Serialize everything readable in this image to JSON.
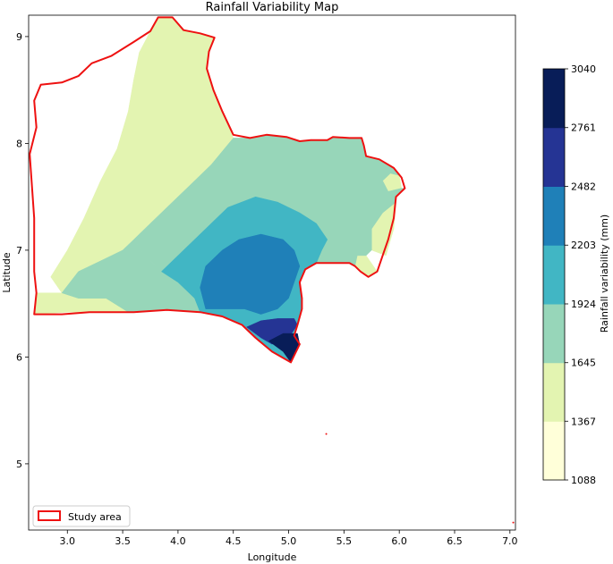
{
  "chart_data": {
    "type": "heatmap",
    "title": "Rainfall Variability Map",
    "xlabel": "Longitude",
    "ylabel": "Latitude",
    "xlim": [
      2.65,
      7.05
    ],
    "ylim": [
      4.38,
      9.2
    ],
    "xticks": [
      3.0,
      3.5,
      4.0,
      4.5,
      5.0,
      5.5,
      6.0,
      6.5,
      7.0
    ],
    "xtick_labels": [
      "3.0",
      "3.5",
      "4.0",
      "4.5",
      "5.0",
      "5.5",
      "6.0",
      "6.5",
      "7.0"
    ],
    "yticks": [
      5,
      6,
      7,
      8,
      9
    ],
    "ytick_labels": [
      "5",
      "6",
      "7",
      "8",
      "9"
    ],
    "grid": false,
    "colorbar": {
      "label": "Rainfall variability (mm)",
      "bounds": [
        1088,
        1367,
        1645,
        1924,
        2203,
        2482,
        2761,
        3040
      ],
      "tick_labels": [
        "1088",
        "1367",
        "1645",
        "1924",
        "2203",
        "2482",
        "2761",
        "3040"
      ],
      "colors": [
        "#ffffd9",
        "#e3f4b1",
        "#97d6b9",
        "#41b6c4",
        "#1f80b8",
        "#253494",
        "#081d58"
      ]
    },
    "legend": {
      "entries": [
        "Study area"
      ],
      "placement": "lower-left",
      "boundary_color": "#ee1111"
    },
    "study_area_outline": [
      [
        2.7,
        6.4
      ],
      [
        2.72,
        6.6
      ],
      [
        2.7,
        6.8
      ],
      [
        2.7,
        7.0
      ],
      [
        2.7,
        7.3
      ],
      [
        2.68,
        7.6
      ],
      [
        2.66,
        7.9
      ],
      [
        2.72,
        8.15
      ],
      [
        2.7,
        8.4
      ],
      [
        2.76,
        8.55
      ],
      [
        2.95,
        8.57
      ],
      [
        3.1,
        8.63
      ],
      [
        3.22,
        8.75
      ],
      [
        3.4,
        8.82
      ],
      [
        3.6,
        8.95
      ],
      [
        3.75,
        9.05
      ],
      [
        3.82,
        9.18
      ],
      [
        3.95,
        9.18
      ],
      [
        4.05,
        9.06
      ],
      [
        4.2,
        9.03
      ],
      [
        4.33,
        8.99
      ],
      [
        4.28,
        8.86
      ],
      [
        4.26,
        8.7
      ],
      [
        4.32,
        8.5
      ],
      [
        4.4,
        8.3
      ],
      [
        4.5,
        8.08
      ],
      [
        4.65,
        8.05
      ],
      [
        4.8,
        8.08
      ],
      [
        4.98,
        8.06
      ],
      [
        5.1,
        8.02
      ],
      [
        5.2,
        8.03
      ],
      [
        5.35,
        8.03
      ],
      [
        5.4,
        8.06
      ],
      [
        5.55,
        8.05
      ],
      [
        5.66,
        8.05
      ],
      [
        5.68,
        7.98
      ],
      [
        5.7,
        7.88
      ],
      [
        5.82,
        7.85
      ],
      [
        5.95,
        7.77
      ],
      [
        6.02,
        7.68
      ],
      [
        6.05,
        7.58
      ],
      [
        5.97,
        7.5
      ],
      [
        5.95,
        7.3
      ],
      [
        5.9,
        7.1
      ],
      [
        5.85,
        6.95
      ],
      [
        5.8,
        6.8
      ],
      [
        5.72,
        6.75
      ],
      [
        5.65,
        6.8
      ],
      [
        5.6,
        6.85
      ],
      [
        5.55,
        6.88
      ],
      [
        5.4,
        6.88
      ],
      [
        5.25,
        6.88
      ],
      [
        5.15,
        6.82
      ],
      [
        5.1,
        6.7
      ],
      [
        5.12,
        6.55
      ],
      [
        5.12,
        6.45
      ],
      [
        5.08,
        6.3
      ],
      [
        5.05,
        6.2
      ],
      [
        5.1,
        6.12
      ],
      [
        5.02,
        5.95
      ],
      [
        4.85,
        6.05
      ],
      [
        4.7,
        6.18
      ],
      [
        4.58,
        6.3
      ],
      [
        4.4,
        6.38
      ],
      [
        4.2,
        6.42
      ],
      [
        3.9,
        6.44
      ],
      [
        3.6,
        6.42
      ],
      [
        3.2,
        6.42
      ],
      [
        2.95,
        6.4
      ],
      [
        2.7,
        6.4
      ]
    ],
    "class_regions": [
      {
        "class": 1,
        "outline": [
          [
            2.7,
            6.4
          ],
          [
            3.0,
            6.42
          ],
          [
            3.4,
            6.42
          ],
          [
            3.6,
            6.42
          ],
          [
            3.55,
            6.5
          ],
          [
            3.35,
            6.55
          ],
          [
            3.1,
            6.55
          ],
          [
            2.95,
            6.6
          ],
          [
            2.8,
            6.6
          ],
          [
            2.72,
            6.6
          ]
        ]
      },
      {
        "class": 1,
        "outline": [
          [
            2.95,
            6.6
          ],
          [
            3.1,
            6.8
          ],
          [
            3.3,
            6.9
          ],
          [
            3.5,
            7.0
          ],
          [
            3.7,
            7.2
          ],
          [
            3.9,
            7.4
          ],
          [
            4.1,
            7.6
          ],
          [
            4.3,
            7.8
          ],
          [
            4.5,
            8.05
          ],
          [
            4.4,
            8.3
          ],
          [
            4.32,
            8.5
          ],
          [
            4.26,
            8.7
          ],
          [
            4.28,
            8.86
          ],
          [
            4.33,
            8.99
          ],
          [
            4.2,
            9.03
          ],
          [
            4.05,
            9.06
          ],
          [
            3.95,
            9.18
          ],
          [
            3.82,
            9.18
          ],
          [
            3.75,
            9.05
          ],
          [
            3.65,
            8.85
          ],
          [
            3.6,
            8.6
          ],
          [
            3.55,
            8.3
          ],
          [
            3.45,
            7.95
          ],
          [
            3.3,
            7.65
          ],
          [
            3.15,
            7.3
          ],
          [
            3.0,
            7.0
          ],
          [
            2.85,
            6.75
          ]
        ]
      },
      {
        "class": 1,
        "outline": [
          [
            5.75,
            7.0
          ],
          [
            5.88,
            6.95
          ],
          [
            5.95,
            7.2
          ],
          [
            5.97,
            7.45
          ],
          [
            5.85,
            7.35
          ],
          [
            5.75,
            7.2
          ]
        ]
      },
      {
        "class": 1,
        "outline": [
          [
            5.6,
            6.85
          ],
          [
            5.72,
            6.75
          ],
          [
            5.8,
            6.8
          ],
          [
            5.7,
            6.95
          ],
          [
            5.62,
            6.95
          ]
        ]
      },
      {
        "class": 1,
        "outline": [
          [
            5.9,
            7.55
          ],
          [
            6.02,
            7.58
          ],
          [
            6.0,
            7.7
          ],
          [
            5.92,
            7.72
          ],
          [
            5.85,
            7.65
          ]
        ]
      },
      {
        "class": 2,
        "outline": [
          [
            3.55,
            6.42
          ],
          [
            3.9,
            6.44
          ],
          [
            4.2,
            6.42
          ],
          [
            4.15,
            6.55
          ],
          [
            4.0,
            6.7
          ],
          [
            3.85,
            6.8
          ],
          [
            3.7,
            6.95
          ],
          [
            3.6,
            7.1
          ],
          [
            3.5,
            7.0
          ],
          [
            3.3,
            6.9
          ],
          [
            3.1,
            6.8
          ],
          [
            2.95,
            6.6
          ],
          [
            3.1,
            6.55
          ],
          [
            3.35,
            6.55
          ]
        ]
      },
      {
        "class": 2,
        "outline": [
          [
            3.6,
            7.1
          ],
          [
            3.7,
            6.95
          ],
          [
            3.85,
            6.8
          ],
          [
            4.0,
            6.7
          ],
          [
            4.15,
            6.55
          ],
          [
            4.2,
            6.42
          ],
          [
            4.4,
            6.38
          ],
          [
            4.58,
            6.3
          ],
          [
            4.7,
            6.18
          ],
          [
            4.85,
            6.05
          ],
          [
            5.02,
            5.95
          ],
          [
            5.1,
            6.12
          ],
          [
            5.05,
            6.2
          ],
          [
            5.08,
            6.3
          ],
          [
            5.12,
            6.45
          ],
          [
            5.12,
            6.55
          ],
          [
            5.1,
            6.7
          ],
          [
            5.15,
            6.82
          ],
          [
            5.25,
            6.88
          ],
          [
            5.4,
            6.88
          ],
          [
            5.55,
            6.88
          ],
          [
            5.6,
            6.85
          ],
          [
            5.62,
            6.95
          ],
          [
            5.7,
            6.95
          ],
          [
            5.75,
            7.0
          ],
          [
            5.75,
            7.2
          ],
          [
            5.85,
            7.35
          ],
          [
            5.97,
            7.45
          ],
          [
            5.97,
            7.5
          ],
          [
            6.05,
            7.58
          ],
          [
            6.02,
            7.58
          ],
          [
            5.9,
            7.55
          ],
          [
            5.85,
            7.65
          ],
          [
            5.92,
            7.72
          ],
          [
            6.0,
            7.7
          ],
          [
            5.95,
            7.77
          ],
          [
            5.82,
            7.85
          ],
          [
            5.7,
            7.88
          ],
          [
            5.68,
            7.98
          ],
          [
            5.66,
            8.05
          ],
          [
            5.55,
            8.05
          ],
          [
            5.4,
            8.06
          ],
          [
            5.35,
            8.03
          ],
          [
            5.2,
            8.03
          ],
          [
            5.1,
            8.02
          ],
          [
            4.98,
            8.06
          ],
          [
            4.8,
            8.08
          ],
          [
            4.65,
            8.05
          ],
          [
            4.5,
            8.05
          ],
          [
            4.3,
            7.8
          ],
          [
            4.1,
            7.6
          ],
          [
            3.9,
            7.4
          ],
          [
            3.7,
            7.2
          ]
        ]
      },
      {
        "class": 3,
        "outline": [
          [
            3.85,
            6.8
          ],
          [
            4.0,
            6.7
          ],
          [
            4.15,
            6.55
          ],
          [
            4.2,
            6.42
          ],
          [
            4.4,
            6.38
          ],
          [
            4.58,
            6.3
          ],
          [
            4.7,
            6.18
          ],
          [
            4.85,
            6.05
          ],
          [
            5.02,
            5.95
          ],
          [
            5.1,
            6.12
          ],
          [
            5.05,
            6.2
          ],
          [
            5.08,
            6.3
          ],
          [
            5.12,
            6.45
          ],
          [
            5.12,
            6.55
          ],
          [
            5.1,
            6.7
          ],
          [
            5.15,
            6.82
          ],
          [
            5.25,
            6.88
          ],
          [
            5.3,
            7.0
          ],
          [
            5.35,
            7.1
          ],
          [
            5.25,
            7.25
          ],
          [
            5.1,
            7.35
          ],
          [
            4.9,
            7.45
          ],
          [
            4.7,
            7.5
          ],
          [
            4.45,
            7.4
          ],
          [
            4.25,
            7.2
          ],
          [
            4.05,
            7.0
          ]
        ]
      },
      {
        "class": 4,
        "outline": [
          [
            4.25,
            6.45
          ],
          [
            4.45,
            6.45
          ],
          [
            4.6,
            6.45
          ],
          [
            4.75,
            6.4
          ],
          [
            4.9,
            6.45
          ],
          [
            5.0,
            6.55
          ],
          [
            5.05,
            6.7
          ],
          [
            5.1,
            6.85
          ],
          [
            5.05,
            7.0
          ],
          [
            4.95,
            7.1
          ],
          [
            4.75,
            7.15
          ],
          [
            4.55,
            7.1
          ],
          [
            4.4,
            7.0
          ],
          [
            4.25,
            6.85
          ],
          [
            4.2,
            6.65
          ]
        ]
      },
      {
        "class": 5,
        "outline": [
          [
            4.62,
            6.28
          ],
          [
            4.75,
            6.18
          ],
          [
            4.85,
            6.12
          ],
          [
            5.0,
            6.18
          ],
          [
            5.08,
            6.3
          ],
          [
            5.05,
            6.36
          ],
          [
            4.9,
            6.36
          ],
          [
            4.75,
            6.34
          ]
        ]
      },
      {
        "class": 6,
        "outline": [
          [
            4.82,
            6.15
          ],
          [
            4.95,
            6.05
          ],
          [
            5.02,
            5.95
          ],
          [
            5.1,
            6.12
          ],
          [
            5.08,
            6.22
          ],
          [
            4.95,
            6.22
          ]
        ]
      }
    ],
    "stray_points": [
      [
        5.34,
        5.28
      ],
      [
        7.03,
        4.45
      ]
    ]
  }
}
